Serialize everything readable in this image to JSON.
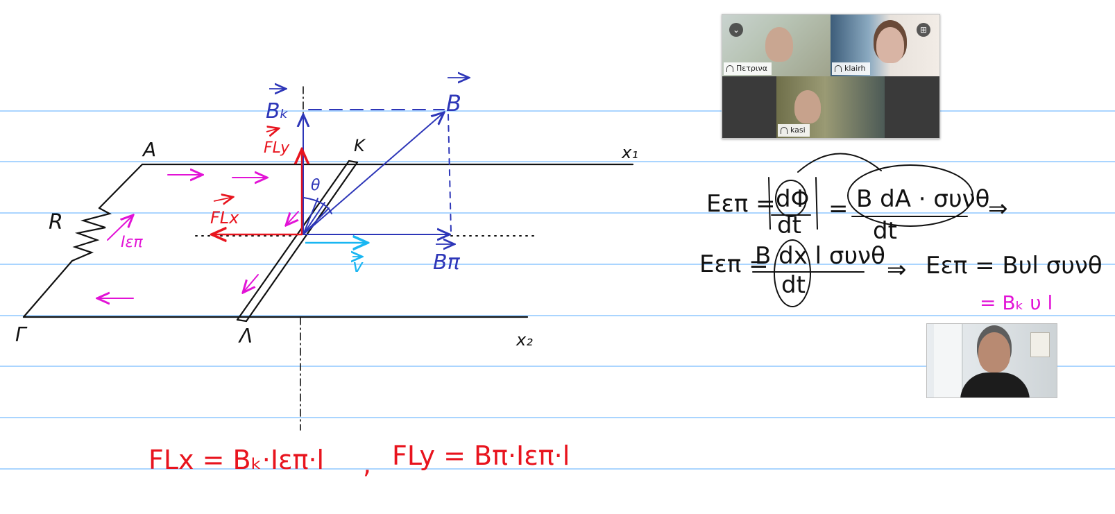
{
  "whiteboard": {
    "ruling_color": "#1e90ff",
    "ink_colors": {
      "black": "#111111",
      "blue": "#2d36b8",
      "red": "#e8141e",
      "magenta": "#e213d6",
      "cyan": "#19b6f2"
    },
    "diagram_labels": {
      "A": "A",
      "gamma": "Γ",
      "lambda": "Λ",
      "kappa": "Κ",
      "R": "R",
      "x1": "x₁",
      "x2": "x₂",
      "B": "B",
      "B_k": "Bₖ",
      "B_p": "Bπ",
      "F_Ly": "FLy",
      "F_Lx": "FLx",
      "v": "v",
      "theta": "θ",
      "I_ep": "Iεπ"
    },
    "formulas": {
      "force_x": "FLx = Bₖ·Iεπ·l",
      "separator": ",",
      "force_y": "FLy = Bπ·Iεπ·l",
      "emf_line1_left": "Eεπ =",
      "emf_line1_num": "dΦ",
      "emf_line1_den": "dt",
      "emf_line1_eq": "=",
      "emf_line1_frac_num": "B dA · συνθ",
      "emf_line1_frac_den": "dt",
      "emf_line1_arrow": "⇒",
      "emf_line2_left": "Eεπ =",
      "emf_line2_num": "B dx l συνθ",
      "emf_line2_den": "dt",
      "emf_line2_arrow": "⇒",
      "emf_line2_result": "Eεπ = Bυl συνθ",
      "emf_line3": "= Bₖ υ l"
    }
  },
  "video_call": {
    "participants": [
      {
        "name": "Πετρινα"
      },
      {
        "name": "klairh"
      },
      {
        "name": "kasi"
      }
    ],
    "collapse_icon": "chevron-down-icon",
    "layout_icon": "grid-icon"
  }
}
